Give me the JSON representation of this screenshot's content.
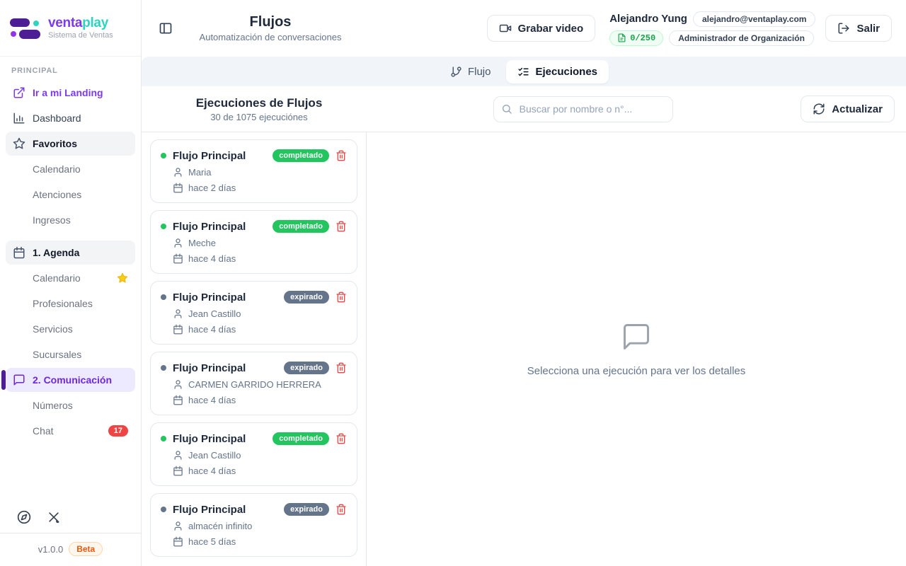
{
  "brand": {
    "logo_text_primary": "venta",
    "logo_text_secondary": "play",
    "tagline": "Sistema de Ventas"
  },
  "sidebar": {
    "section_label": "PRINCIPAL",
    "items": [
      {
        "label": "Ir a mi Landing",
        "icon": "external-link",
        "variant": "purple-link"
      },
      {
        "label": "Dashboard",
        "icon": "bar-chart",
        "variant": ""
      },
      {
        "label": "Favoritos",
        "icon": "star",
        "variant": "highlighted"
      },
      {
        "label": "Calendario",
        "variant": "child"
      },
      {
        "label": "Atenciones",
        "variant": "child"
      },
      {
        "label": "Ingresos",
        "variant": "child"
      },
      {
        "label": "1. Agenda",
        "icon": "calendar",
        "variant": "highlighted",
        "group_start": true
      },
      {
        "label": "Calendario",
        "variant": "child",
        "starred": true
      },
      {
        "label": "Profesionales",
        "variant": "child"
      },
      {
        "label": "Servicios",
        "variant": "child"
      },
      {
        "label": "Sucursales",
        "variant": "child"
      },
      {
        "label": "2. Comunicación",
        "icon": "chat",
        "variant": "active"
      },
      {
        "label": "Números",
        "variant": "child"
      },
      {
        "label": "Chat",
        "variant": "child",
        "badge": "17"
      }
    ],
    "footer": {
      "version": "v1.0.0",
      "beta_label": "Beta"
    }
  },
  "header": {
    "title": "Flujos",
    "subtitle": "Automatización de conversaciones",
    "record_button_label": "Grabar video",
    "user": {
      "name": "Alejandro Yung",
      "email": "alejandro@ventaplay.com",
      "quota": "0/250",
      "role": "Administrador de Organización"
    },
    "logout_label": "Salir"
  },
  "tabs": [
    {
      "label": "Flujo",
      "icon": "git-branch",
      "active": false
    },
    {
      "label": "Ejecuciones",
      "icon": "list-checks",
      "active": true
    }
  ],
  "executions": {
    "title": "Ejecuciones de Flujos",
    "subtitle": "30 de 1075 ejecuciónes",
    "search_placeholder": "Buscar por nombre o n°...",
    "refresh_label": "Actualizar",
    "items": [
      {
        "name": "Flujo Principal",
        "status": "completado",
        "person": "Maria",
        "time": "hace 2 días"
      },
      {
        "name": "Flujo Principal",
        "status": "completado",
        "person": "Meche",
        "time": "hace 4 días"
      },
      {
        "name": "Flujo Principal",
        "status": "expirado",
        "person": "Jean Castillo",
        "time": "hace 4 días"
      },
      {
        "name": "Flujo Principal",
        "status": "expirado",
        "person": "CARMEN GARRIDO HERRERA",
        "time": "hace 4 días"
      },
      {
        "name": "Flujo Principal",
        "status": "completado",
        "person": "Jean Castillo",
        "time": "hace 4 días"
      },
      {
        "name": "Flujo Principal",
        "status": "expirado",
        "person": "almacén infinito",
        "time": "hace 5 días"
      }
    ],
    "empty_state_text": "Selecciona una ejecución para ver los detalles"
  },
  "colors": {
    "accent_purple": "#7c3aed",
    "brand_teal": "#2dd4bf",
    "status_completed": "#22c55e",
    "status_expired": "#64748b",
    "danger_red": "#ef4444",
    "beta_orange": "#ea580c",
    "quota_green": "#16a34a"
  }
}
